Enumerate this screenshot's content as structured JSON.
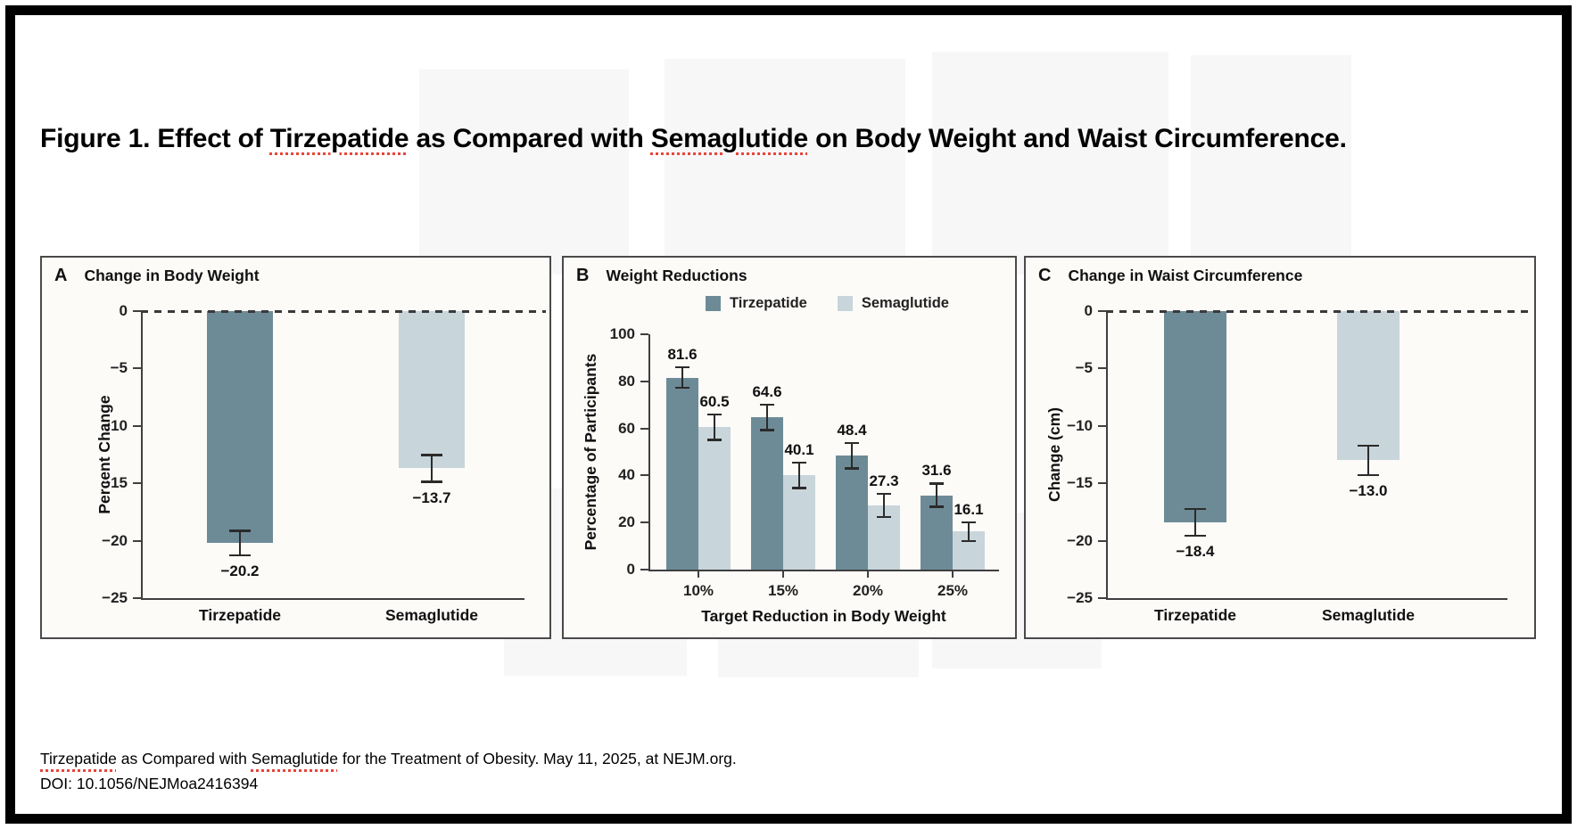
{
  "figure_title": {
    "parts": [
      {
        "text": "Figure 1. Effect of ",
        "spellcheck_underline": false
      },
      {
        "text": "Tirzepatide",
        "spellcheck_underline": true
      },
      {
        "text": " as Compared with ",
        "spellcheck_underline": false
      },
      {
        "text": "Semaglutide",
        "spellcheck_underline": true
      },
      {
        "text": " on Body Weight and Waist Circumference.",
        "spellcheck_underline": false
      }
    ]
  },
  "panels": [
    {
      "label": "A",
      "title": "Change in Body Weight"
    },
    {
      "label": "B",
      "title": "Weight Reductions"
    },
    {
      "label": "C",
      "title": "Change in Waist Circumference"
    }
  ],
  "chart_data": [
    {
      "panel": "A",
      "type": "bar",
      "title": "Change in Body Weight",
      "categories": [
        "Tirzepatide",
        "Semaglutide"
      ],
      "values": [
        -20.2,
        -13.7
      ],
      "value_labels": [
        "−20.2",
        "−13.7"
      ],
      "errors": [
        1.1,
        1.2
      ],
      "ylabel": "Percent Change",
      "xlabel": "",
      "ylim": [
        -25,
        0
      ],
      "yticks": [
        0,
        -5,
        -10,
        -15,
        -20,
        -25
      ],
      "zero_line": "dashed",
      "grid": false
    },
    {
      "panel": "B",
      "type": "grouped-bar",
      "title": "Weight Reductions",
      "categories": [
        "10%",
        "15%",
        "20%",
        "25%"
      ],
      "series": [
        {
          "name": "Tirzepatide",
          "values": [
            81.6,
            64.6,
            48.4,
            31.6
          ],
          "errors": [
            4.5,
            5.5,
            5.5,
            5
          ]
        },
        {
          "name": "Semaglutide",
          "values": [
            60.5,
            40.1,
            27.3,
            16.1
          ],
          "errors": [
            5.5,
            5.5,
            5,
            4
          ]
        }
      ],
      "legend": [
        "Tirzepatide",
        "Semaglutide"
      ],
      "legend_position": "top",
      "ylabel": "Percentage of Participants",
      "xlabel": "Target Reduction in Body Weight",
      "ylim": [
        0,
        100
      ],
      "yticks": [
        0,
        20,
        40,
        60,
        80,
        100
      ],
      "grid": false
    },
    {
      "panel": "C",
      "type": "bar",
      "title": "Change in Waist Circumference",
      "categories": [
        "Tirzepatide",
        "Semaglutide"
      ],
      "values": [
        -18.4,
        -13.0
      ],
      "value_labels": [
        "−18.4",
        "−13.0"
      ],
      "errors": [
        1.2,
        1.3
      ],
      "ylabel": "Change (cm)",
      "xlabel": "",
      "ylim": [
        -25,
        0
      ],
      "yticks": [
        0,
        -5,
        -10,
        -15,
        -20,
        -25
      ],
      "zero_line": "dashed",
      "grid": false
    }
  ],
  "footer": {
    "citation_parts": [
      {
        "text": "Tirzepatide",
        "spellcheck_underline": true
      },
      {
        "text": " as Compared with ",
        "spellcheck_underline": false
      },
      {
        "text": "Semaglutide",
        "spellcheck_underline": true
      },
      {
        "text": " for the Treatment of Obesity. May 11, 2025, at NEJM.org.",
        "spellcheck_underline": false
      }
    ],
    "doi": "DOI: 10.1056/NEJMoa2416394"
  },
  "colors": {
    "tirzepatide": "#6d8b97",
    "semaglutide": "#c8d5db",
    "axis": "#3f3f3f",
    "error_bar": "#2b2b2b",
    "spellcheck_underline": "#e8443a",
    "panel_background": "#fcfbf8",
    "panel_border": "#4a4a4a",
    "frame": "#000000"
  }
}
